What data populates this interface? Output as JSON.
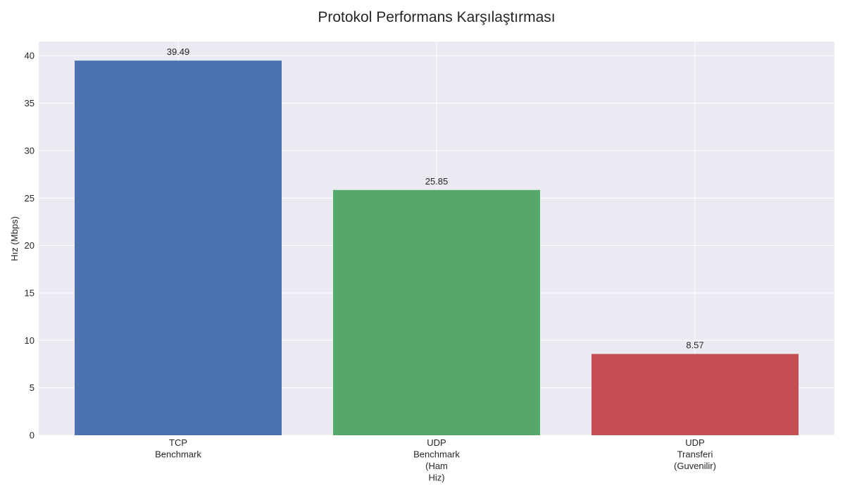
{
  "chart_data": {
    "type": "bar",
    "title": "Protokol Performans Karşılaştırması",
    "xlabel": "",
    "ylabel": "Hız (Mbps)",
    "ylim": [
      0,
      41.5
    ],
    "yticks": [
      0,
      5,
      10,
      15,
      20,
      25,
      30,
      35,
      40
    ],
    "grid": true,
    "categories": [
      [
        "TCP",
        "Benchmark"
      ],
      [
        "UDP",
        "Benchmark",
        "(Ham",
        "Hiz)"
      ],
      [
        "UDP",
        "Transferi",
        "(Guvenilir)"
      ]
    ],
    "values": [
      39.49,
      25.85,
      8.57
    ],
    "value_labels": [
      "39.49",
      "25.85",
      "8.57"
    ],
    "colors": [
      "#4c72b0",
      "#55a868",
      "#c44e52"
    ],
    "background": "#eaeaf2",
    "grid_color": "#ffffff"
  }
}
